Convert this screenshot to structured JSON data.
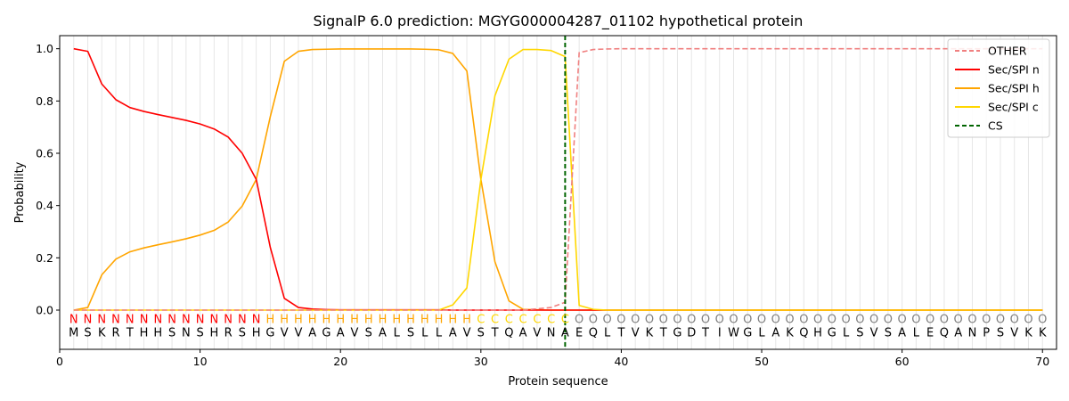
{
  "chart_data": {
    "type": "line",
    "title": "SignalP 6.0 prediction: MGYG000004287_01102 hypothetical protein",
    "xlabel": "Protein sequence",
    "ylabel": "Probability",
    "xlim": [
      0,
      71
    ],
    "ylim": [
      -0.15,
      1.05
    ],
    "xticks": [
      0,
      10,
      20,
      30,
      40,
      50,
      60,
      70
    ],
    "yticks": [
      0.0,
      0.2,
      0.4,
      0.6,
      0.8,
      1.0
    ],
    "vertical_grid": true,
    "legend_position": "top-right",
    "sequence": [
      "M",
      "S",
      "K",
      "R",
      "T",
      "H",
      "H",
      "S",
      "N",
      "S",
      "H",
      "R",
      "S",
      "H",
      "G",
      "V",
      "V",
      "A",
      "G",
      "A",
      "V",
      "S",
      "A",
      "L",
      "S",
      "L",
      "L",
      "A",
      "V",
      "S",
      "T",
      "Q",
      "A",
      "V",
      "N",
      "A",
      "E",
      "Q",
      "L",
      "T",
      "V",
      "K",
      "T",
      "G",
      "D",
      "T",
      "I",
      "W",
      "G",
      "L",
      "A",
      "K",
      "Q",
      "H",
      "G",
      "L",
      "S",
      "V",
      "S",
      "A",
      "L",
      "E",
      "Q",
      "A",
      "N",
      "P",
      "S",
      "V",
      "K",
      "K"
    ],
    "labels": [
      "N",
      "N",
      "N",
      "N",
      "N",
      "N",
      "N",
      "N",
      "N",
      "N",
      "N",
      "N",
      "N",
      "N",
      "H",
      "H",
      "H",
      "H",
      "H",
      "H",
      "H",
      "H",
      "H",
      "H",
      "H",
      "H",
      "H",
      "H",
      "H",
      "C",
      "C",
      "C",
      "C",
      "C",
      "C",
      "C",
      "O",
      "O",
      "O",
      "O",
      "O",
      "O",
      "O",
      "O",
      "O",
      "O",
      "O",
      "O",
      "O",
      "O",
      "O",
      "O",
      "O",
      "O",
      "O",
      "O",
      "O",
      "O",
      "O",
      "O",
      "O",
      "O",
      "O",
      "O",
      "O",
      "O",
      "O",
      "O",
      "O",
      "O"
    ],
    "label_colors": {
      "N": "#ff0000",
      "H": "#ffa500",
      "C": "#ffd700",
      "O": "#808080"
    },
    "cleavage_site": 36,
    "series": [
      {
        "name": "OTHER",
        "color": "#f08080",
        "dash": "dashed",
        "values": [
          0,
          0,
          0,
          0,
          0,
          0,
          0,
          0,
          0,
          0,
          0,
          0,
          0,
          0,
          0,
          0,
          0,
          0,
          0,
          0,
          0,
          0,
          0,
          0,
          0,
          0,
          0,
          0,
          0,
          0,
          0,
          0,
          0,
          0.005,
          0.01,
          0.03,
          0.985,
          0.997,
          0.999,
          1,
          1,
          1,
          1,
          1,
          1,
          1,
          1,
          1,
          1,
          1,
          1,
          1,
          1,
          1,
          1,
          1,
          1,
          1,
          1,
          1,
          1,
          1,
          1,
          1,
          1,
          1,
          1,
          1,
          1,
          1
        ]
      },
      {
        "name": "Sec/SPI n",
        "color": "#ff0000",
        "dash": "solid",
        "values": [
          1.0,
          0.99,
          0.865,
          0.805,
          0.775,
          0.76,
          0.748,
          0.737,
          0.726,
          0.712,
          0.693,
          0.662,
          0.6,
          0.5,
          0.24,
          0.045,
          0.01,
          0.004,
          0.002,
          0.001,
          0.001,
          0.001,
          0.001,
          0.001,
          0.001,
          0.001,
          0.001,
          0,
          0,
          0,
          0,
          0,
          0,
          0,
          0,
          0,
          0,
          0,
          0,
          0,
          0,
          0,
          0,
          0,
          0,
          0,
          0,
          0,
          0,
          0,
          0,
          0,
          0,
          0,
          0,
          0,
          0,
          0,
          0,
          0,
          0,
          0,
          0,
          0,
          0,
          0,
          0,
          0,
          0,
          0
        ]
      },
      {
        "name": "Sec/SPI h",
        "color": "#ffa500",
        "dash": "solid",
        "values": [
          0,
          0.01,
          0.135,
          0.195,
          0.223,
          0.238,
          0.25,
          0.261,
          0.273,
          0.287,
          0.305,
          0.337,
          0.398,
          0.5,
          0.74,
          0.952,
          0.99,
          0.997,
          0.998,
          0.999,
          0.999,
          0.999,
          0.999,
          0.999,
          0.999,
          0.998,
          0.996,
          0.982,
          0.915,
          0.5,
          0.185,
          0.035,
          0.003,
          0.001,
          0,
          0,
          0,
          0,
          0,
          0,
          0,
          0,
          0,
          0,
          0,
          0,
          0,
          0,
          0,
          0,
          0,
          0,
          0,
          0,
          0,
          0,
          0,
          0,
          0,
          0,
          0,
          0,
          0,
          0,
          0,
          0,
          0,
          0,
          0,
          0
        ]
      },
      {
        "name": "Sec/SPI c",
        "color": "#ffd700",
        "dash": "solid",
        "values": [
          0,
          0,
          0,
          0,
          0,
          0,
          0,
          0,
          0,
          0,
          0,
          0,
          0,
          0,
          0,
          0,
          0,
          0,
          0,
          0,
          0,
          0,
          0,
          0,
          0,
          0,
          0,
          0.02,
          0.085,
          0.5,
          0.82,
          0.96,
          0.997,
          0.997,
          0.993,
          0.97,
          0.018,
          0.003,
          0,
          0,
          0,
          0,
          0,
          0,
          0,
          0,
          0,
          0,
          0,
          0,
          0,
          0,
          0,
          0,
          0,
          0,
          0,
          0,
          0,
          0,
          0,
          0,
          0,
          0,
          0,
          0,
          0,
          0,
          0,
          0
        ]
      },
      {
        "name": "CS",
        "color": "#006400",
        "dash": "dashed",
        "vertical_at": 36
      }
    ]
  }
}
